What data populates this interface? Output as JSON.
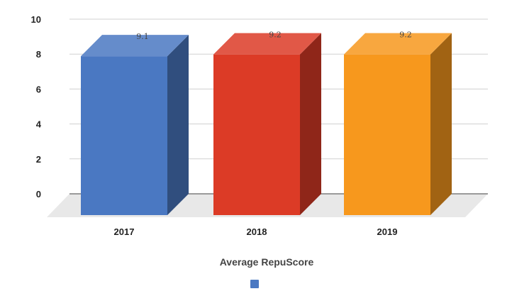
{
  "chart_data": {
    "type": "bar",
    "style": "3d-column",
    "categories": [
      "2017",
      "2018",
      "2019"
    ],
    "series": [
      {
        "name": "Average RepuScore",
        "values": [
          9.1,
          9.2,
          9.2
        ]
      }
    ],
    "data_labels": [
      "9.1",
      "9.2",
      "9.2"
    ],
    "bar_colors": [
      "#4a78c2",
      "#dc3b26",
      "#f7981d"
    ],
    "legend_color": "#4a78c2",
    "ylim": [
      0,
      10
    ],
    "yticks": [
      "0",
      "2",
      "4",
      "6",
      "8",
      "10"
    ],
    "grid": true,
    "legend_position": "bottom",
    "title": "",
    "xlabel": "",
    "ylabel": ""
  }
}
